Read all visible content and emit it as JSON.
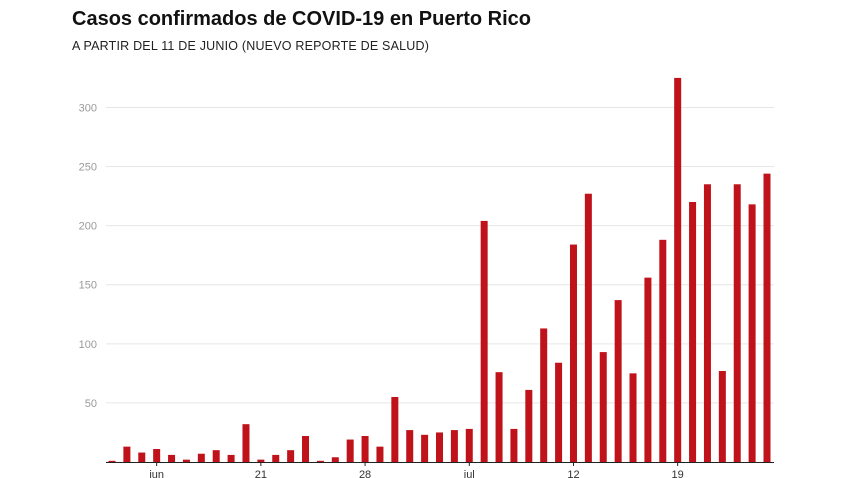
{
  "title": "Casos confirmados de COVID-19 en Puerto Rico",
  "subtitle": "A PARTIR DEL 11 DE JUNIO (NUEVO REPORTE DE SALUD)",
  "colors": {
    "bar": "#c0121a",
    "grid": "#e6e6e6",
    "axis": "#222222"
  },
  "chart_data": {
    "type": "bar",
    "title": "Casos confirmados de COVID-19 en Puerto Rico",
    "subtitle": "A PARTIR DEL 11 DE JUNIO (NUEVO REPORTE DE SALUD)",
    "xlabel": "",
    "ylabel": "",
    "ylim": [
      0,
      330
    ],
    "yticks": [
      50,
      100,
      150,
      200,
      250,
      300
    ],
    "grid": true,
    "legend": "none",
    "x_tick_labels": [
      {
        "index": 3,
        "label": "jun"
      },
      {
        "index": 10,
        "label": "21"
      },
      {
        "index": 17,
        "label": "28"
      },
      {
        "index": 24,
        "label": "jul"
      },
      {
        "index": 31,
        "label": "12"
      },
      {
        "index": 38,
        "label": "19"
      }
    ],
    "values": [
      1,
      13,
      8,
      11,
      6,
      2,
      7,
      10,
      6,
      32,
      2,
      6,
      10,
      22,
      1,
      4,
      19,
      22,
      13,
      55,
      27,
      23,
      25,
      27,
      28,
      204,
      76,
      28,
      61,
      113,
      84,
      184,
      227,
      93,
      137,
      75,
      156,
      188,
      325,
      220,
      235,
      77,
      235,
      218,
      244
    ]
  }
}
